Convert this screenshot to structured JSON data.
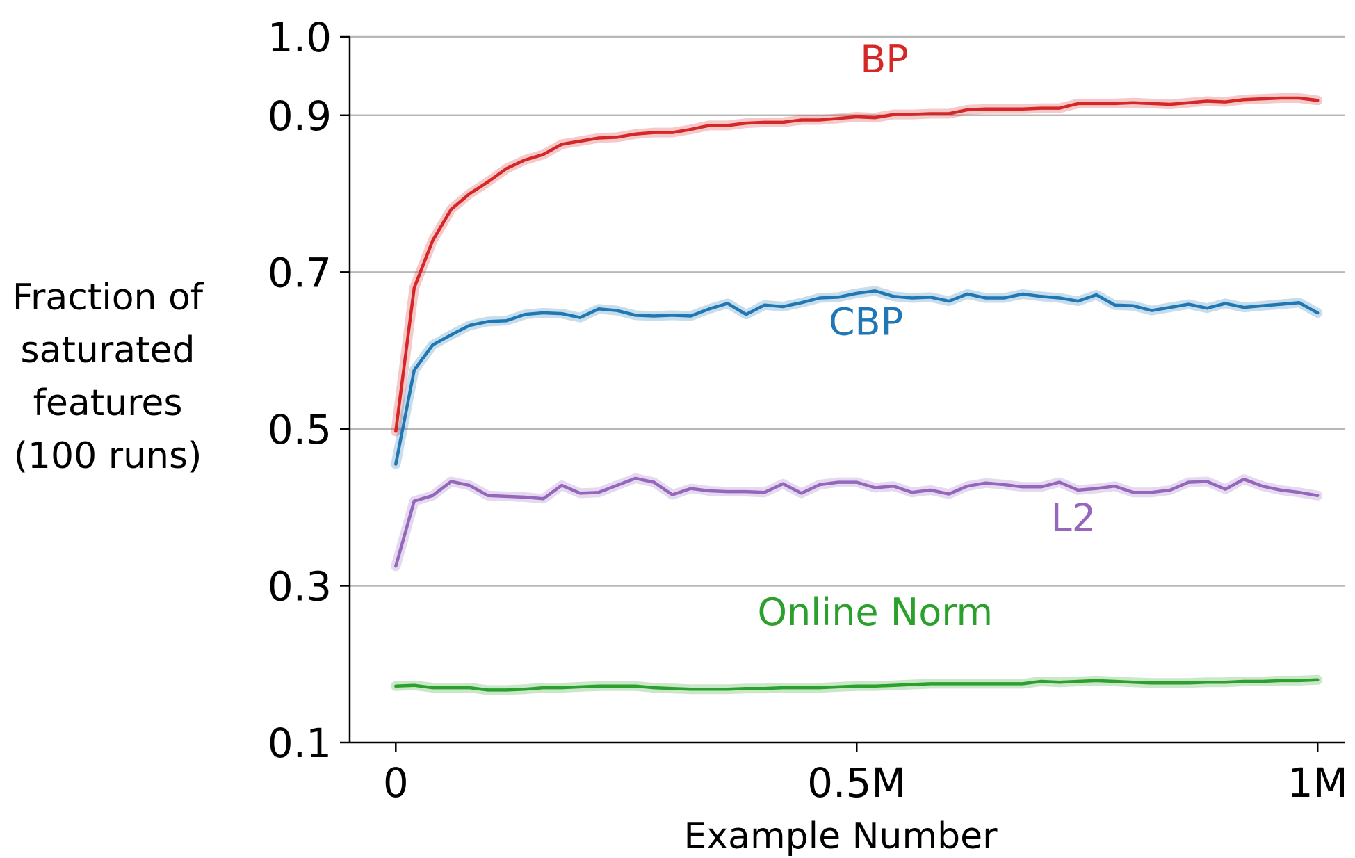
{
  "chart_data": {
    "type": "line",
    "xlabel": "Example Number",
    "ylabel_lines": [
      "Fraction of",
      "saturated",
      "features",
      "(100 runs)"
    ],
    "xlim": [
      -50000,
      1030000
    ],
    "ylim": [
      0.1,
      1.0
    ],
    "x_ticks": [
      {
        "value": 0,
        "label": "0"
      },
      {
        "value": 500000,
        "label": "0.5M"
      },
      {
        "value": 1000000,
        "label": "1M"
      }
    ],
    "y_ticks": [
      {
        "value": 0.1,
        "label": "0.1"
      },
      {
        "value": 0.3,
        "label": "0.3"
      },
      {
        "value": 0.5,
        "label": "0.5"
      },
      {
        "value": 0.7,
        "label": "0.7"
      },
      {
        "value": 0.9,
        "label": "0.9"
      },
      {
        "value": 1.0,
        "label": "1.0"
      }
    ],
    "gridlines_y": [
      0.3,
      0.5,
      0.7,
      0.9,
      1.0
    ],
    "x_step": 20000,
    "series": [
      {
        "name": "BP",
        "color": "#d62728",
        "label_pos": {
          "x": 530000,
          "y": 0.955
        },
        "values": [
          0.497,
          0.68,
          0.74,
          0.78,
          0.8,
          0.815,
          0.832,
          0.843,
          0.85,
          0.863,
          0.867,
          0.871,
          0.872,
          0.876,
          0.878,
          0.878,
          0.882,
          0.887,
          0.887,
          0.89,
          0.891,
          0.891,
          0.894,
          0.894,
          0.896,
          0.898,
          0.897,
          0.901,
          0.901,
          0.902,
          0.902,
          0.907,
          0.908,
          0.908,
          0.908,
          0.909,
          0.909,
          0.915,
          0.915,
          0.915,
          0.916,
          0.915,
          0.914,
          0.916,
          0.918,
          0.917,
          0.92,
          0.921,
          0.922,
          0.922,
          0.919
        ]
      },
      {
        "name": "CBP",
        "color": "#1f77b4",
        "label_pos": {
          "x": 510000,
          "y": 0.62
        },
        "values": [
          0.455,
          0.575,
          0.607,
          0.62,
          0.632,
          0.637,
          0.638,
          0.646,
          0.648,
          0.647,
          0.642,
          0.653,
          0.651,
          0.645,
          0.644,
          0.645,
          0.644,
          0.653,
          0.66,
          0.646,
          0.658,
          0.656,
          0.661,
          0.667,
          0.668,
          0.673,
          0.676,
          0.669,
          0.667,
          0.668,
          0.663,
          0.672,
          0.667,
          0.667,
          0.672,
          0.669,
          0.667,
          0.663,
          0.671,
          0.658,
          0.657,
          0.651,
          0.655,
          0.659,
          0.654,
          0.66,
          0.655,
          0.657,
          0.659,
          0.661,
          0.648
        ]
      },
      {
        "name": "L2",
        "color": "#9467bd",
        "label_pos": {
          "x": 735000,
          "y": 0.37
        },
        "values": [
          0.325,
          0.408,
          0.415,
          0.433,
          0.428,
          0.415,
          0.414,
          0.413,
          0.411,
          0.428,
          0.418,
          0.419,
          0.428,
          0.437,
          0.432,
          0.416,
          0.424,
          0.421,
          0.42,
          0.42,
          0.419,
          0.43,
          0.418,
          0.429,
          0.432,
          0.432,
          0.425,
          0.427,
          0.419,
          0.422,
          0.417,
          0.427,
          0.431,
          0.429,
          0.426,
          0.426,
          0.432,
          0.422,
          0.424,
          0.427,
          0.419,
          0.419,
          0.422,
          0.432,
          0.433,
          0.423,
          0.436,
          0.427,
          0.422,
          0.419,
          0.415
        ]
      },
      {
        "name": "Online Norm",
        "color": "#2ca02c",
        "label_pos": {
          "x": 520000,
          "y": 0.25
        },
        "values": [
          0.172,
          0.173,
          0.17,
          0.17,
          0.17,
          0.167,
          0.167,
          0.168,
          0.17,
          0.17,
          0.171,
          0.172,
          0.172,
          0.172,
          0.17,
          0.169,
          0.168,
          0.168,
          0.168,
          0.169,
          0.169,
          0.17,
          0.17,
          0.17,
          0.171,
          0.172,
          0.172,
          0.173,
          0.174,
          0.175,
          0.175,
          0.175,
          0.175,
          0.175,
          0.175,
          0.178,
          0.177,
          0.178,
          0.179,
          0.178,
          0.177,
          0.176,
          0.176,
          0.176,
          0.177,
          0.177,
          0.178,
          0.178,
          0.179,
          0.179,
          0.18
        ]
      }
    ]
  }
}
